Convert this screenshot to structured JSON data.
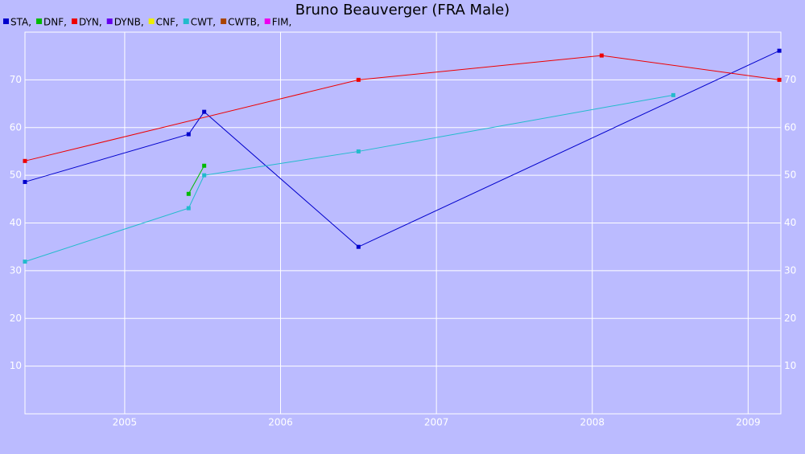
{
  "chart_data": {
    "type": "line",
    "title": "Bruno Beauverger (FRA Male)",
    "series": [
      {
        "name": "STA,",
        "color": "#0000cc",
        "x": [
          2004.36,
          2005.41,
          2005.51,
          2006.5,
          2009.2
        ],
        "values": [
          48.6,
          58.6,
          63.3,
          35.0,
          76.1
        ]
      },
      {
        "name": "DNF,",
        "color": "#00bb00",
        "x": [
          2005.41,
          2005.51
        ],
        "values": [
          46.1,
          52.0
        ]
      },
      {
        "name": "DYN,",
        "color": "#ee0000",
        "x": [
          2004.36,
          2006.5,
          2008.06,
          2009.2
        ],
        "values": [
          53.0,
          70.0,
          75.1,
          70.0
        ]
      },
      {
        "name": "DYNB,",
        "color": "#6600ee",
        "x": [],
        "values": []
      },
      {
        "name": "CNF,",
        "color": "#eeee00",
        "x": [],
        "values": []
      },
      {
        "name": "CWT,",
        "color": "#22bbcc",
        "x": [
          2004.36,
          2005.41,
          2005.51,
          2006.5,
          2008.52
        ],
        "values": [
          31.9,
          43.1,
          50.0,
          55.0,
          66.8
        ]
      },
      {
        "name": "CWTB,",
        "color": "#aa4400",
        "x": [],
        "values": []
      },
      {
        "name": "FIM,",
        "color": "#ee00ee",
        "x": [],
        "values": []
      }
    ],
    "xlim": [
      2004.36,
      2009.21
    ],
    "xticks": [
      2005,
      2006,
      2007,
      2008,
      2009
    ],
    "ylim": [
      0,
      80
    ],
    "yticks": [
      10,
      20,
      30,
      40,
      50,
      60,
      70
    ],
    "grid": true
  }
}
